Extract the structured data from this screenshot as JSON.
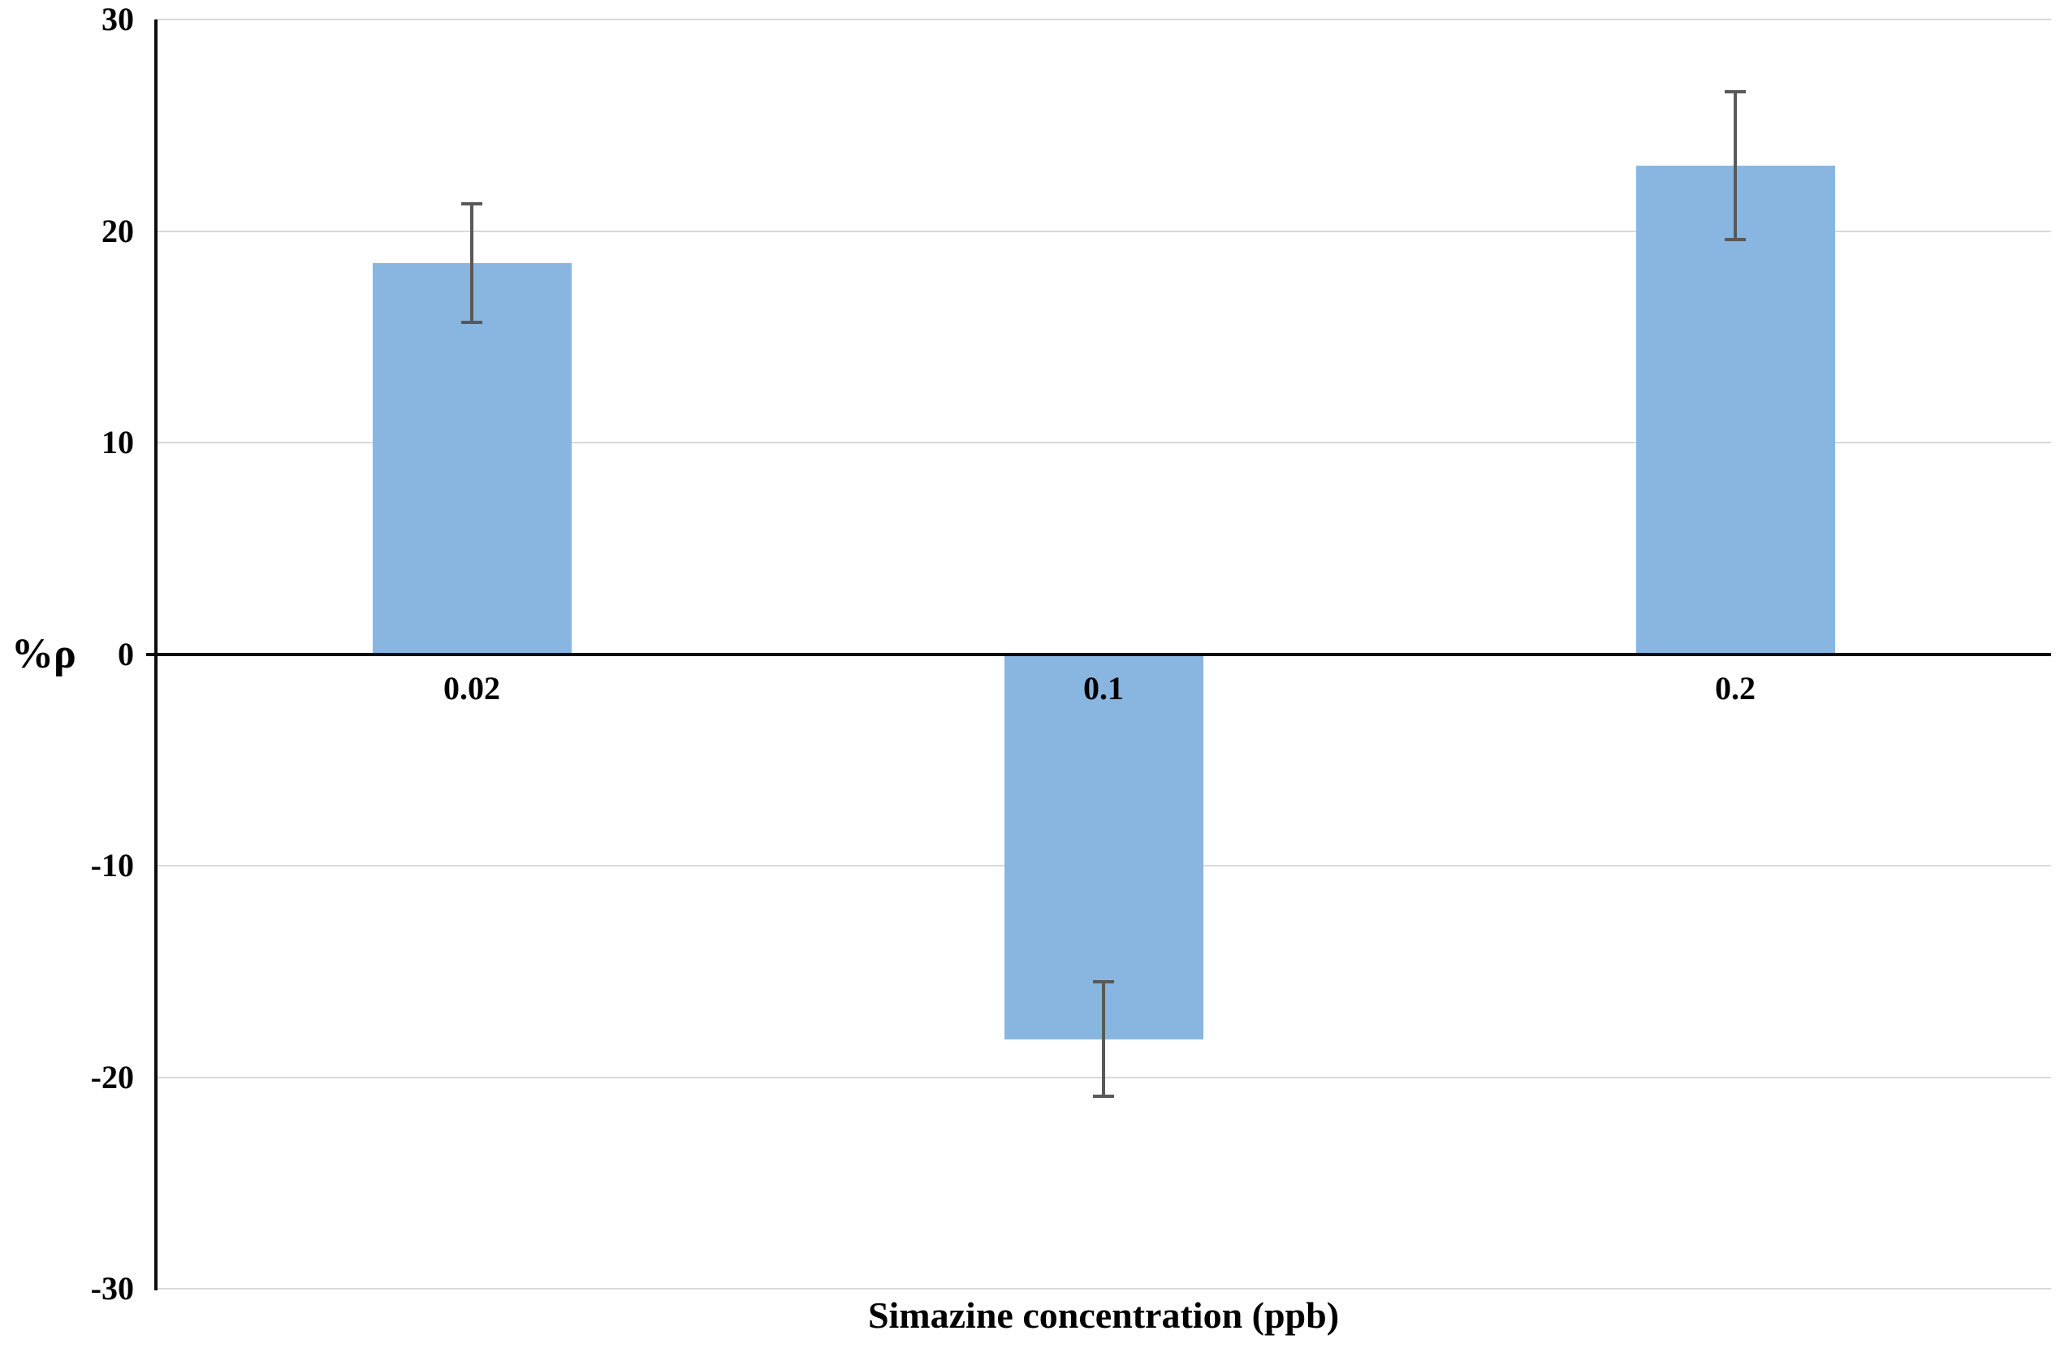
{
  "chart_data": {
    "type": "bar",
    "title": "",
    "xlabel": "Simazine concentration (ppb)",
    "ylabel": "%ρ",
    "categories": [
      "0.02",
      "0.1",
      "0.2"
    ],
    "series": [
      {
        "name": "%ρ",
        "values": [
          18.5,
          -18.2,
          23.1
        ],
        "error_bars": [
          2.8,
          2.7,
          3.5
        ]
      }
    ],
    "ylim": [
      -30,
      30
    ],
    "yticks": [
      30,
      20,
      10,
      0,
      -10,
      -20,
      -30
    ],
    "grid": true,
    "legend_position": "none",
    "colors": {
      "bar_fill": "#88b6e0",
      "error_bar": "#595959",
      "gridline": "#d9d9d9",
      "axis_line": "#0d0d0d",
      "text": "#000000",
      "background": "#ffffff"
    }
  }
}
